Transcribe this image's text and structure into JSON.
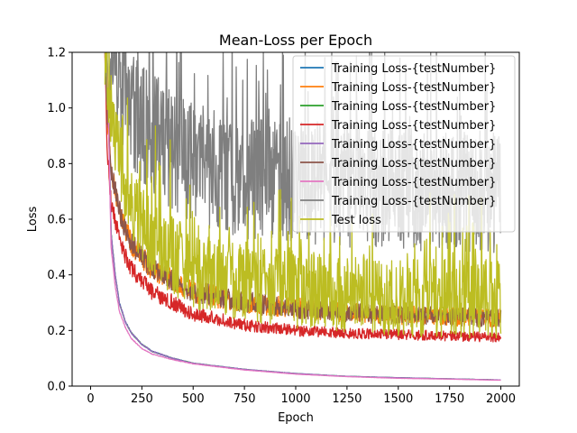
{
  "chart_data": {
    "type": "line",
    "title": "Mean-Loss per Epoch",
    "xlabel": "Epoch",
    "ylabel": "Loss",
    "xlim": [
      -90,
      2090
    ],
    "ylim": [
      0.0,
      1.2
    ],
    "x_ticks": [
      0,
      250,
      500,
      750,
      1000,
      1250,
      1500,
      1750,
      2000
    ],
    "y_ticks": [
      0.0,
      0.2,
      0.4,
      0.6,
      0.8,
      1.0,
      1.2
    ],
    "x_tick_labels": [
      "0",
      "250",
      "500",
      "750",
      "1000",
      "1250",
      "1500",
      "1750",
      "2000"
    ],
    "y_tick_labels": [
      "0.0",
      "0.2",
      "0.4",
      "0.6",
      "0.8",
      "1.0",
      "1.2"
    ],
    "grid": false,
    "legend_position": "top-right",
    "series": [
      {
        "name": "Training Loss-{testNumber}",
        "color": "#1f77b4",
        "noise": 0.004,
        "x": [
          80,
          100,
          120,
          140,
          170,
          200,
          250,
          300,
          400,
          500,
          750,
          1000,
          1250,
          1500,
          1750,
          2000
        ],
        "values": [
          1.2,
          0.55,
          0.4,
          0.3,
          0.23,
          0.19,
          0.15,
          0.125,
          0.1,
          0.082,
          0.06,
          0.045,
          0.035,
          0.03,
          0.026,
          0.022
        ]
      },
      {
        "name": "Training Loss-{testNumber}",
        "color": "#ff7f0e",
        "noise": 0.04,
        "x": [
          70,
          80,
          100,
          150,
          200,
          300,
          500,
          750,
          1000,
          1250,
          1500,
          1750,
          2000
        ],
        "values": [
          1.2,
          1.0,
          0.78,
          0.6,
          0.51,
          0.42,
          0.34,
          0.3,
          0.28,
          0.265,
          0.255,
          0.25,
          0.245
        ]
      },
      {
        "name": "Training Loss-{testNumber}",
        "color": "#2ca02c",
        "noise": 0.004,
        "x": [
          80,
          100,
          120,
          140,
          170,
          200,
          250,
          300,
          400,
          500,
          750,
          1000,
          1250,
          1500,
          1750,
          2000
        ],
        "values": [
          1.2,
          0.55,
          0.4,
          0.3,
          0.23,
          0.19,
          0.15,
          0.125,
          0.1,
          0.082,
          0.06,
          0.045,
          0.035,
          0.03,
          0.026,
          0.022
        ]
      },
      {
        "name": "Training Loss-{testNumber}",
        "color": "#d62728",
        "noise": 0.03,
        "x": [
          70,
          80,
          100,
          150,
          200,
          300,
          500,
          750,
          1000,
          1250,
          1500,
          1750,
          2000
        ],
        "values": [
          1.2,
          0.85,
          0.66,
          0.5,
          0.42,
          0.34,
          0.26,
          0.22,
          0.2,
          0.19,
          0.185,
          0.18,
          0.175
        ]
      },
      {
        "name": "Training Loss-{testNumber}",
        "color": "#9467bd",
        "noise": 0.004,
        "x": [
          80,
          100,
          120,
          140,
          170,
          200,
          250,
          300,
          400,
          500,
          750,
          1000,
          1250,
          1500,
          1750,
          2000
        ],
        "values": [
          1.2,
          0.55,
          0.4,
          0.3,
          0.23,
          0.19,
          0.15,
          0.125,
          0.1,
          0.082,
          0.06,
          0.045,
          0.035,
          0.03,
          0.026,
          0.022
        ]
      },
      {
        "name": "Training Loss-{testNumber}",
        "color": "#8c564b",
        "noise": 0.04,
        "x": [
          70,
          80,
          100,
          150,
          200,
          300,
          500,
          750,
          1000,
          1250,
          1500,
          1750,
          2000
        ],
        "values": [
          1.2,
          1.0,
          0.78,
          0.6,
          0.51,
          0.42,
          0.34,
          0.3,
          0.28,
          0.265,
          0.255,
          0.25,
          0.245
        ]
      },
      {
        "name": "Training Loss-{testNumber}",
        "color": "#e377c2",
        "noise": 0.003,
        "x": [
          80,
          100,
          120,
          140,
          170,
          200,
          250,
          300,
          400,
          500,
          750,
          1000,
          1250,
          1500,
          1750,
          2000
        ],
        "values": [
          1.2,
          0.5,
          0.36,
          0.27,
          0.21,
          0.17,
          0.135,
          0.115,
          0.095,
          0.08,
          0.058,
          0.043,
          0.034,
          0.028,
          0.025,
          0.021
        ]
      },
      {
        "name": "Training Loss-{testNumber}",
        "color": "#7f7f7f",
        "noise": 0.22,
        "x": [
          70,
          100,
          150,
          200,
          300,
          500,
          750,
          1000,
          1250,
          1500,
          1750,
          2000
        ],
        "values": [
          1.2,
          1.15,
          1.05,
          0.98,
          0.9,
          0.8,
          0.75,
          0.73,
          0.72,
          0.71,
          0.7,
          0.7
        ]
      },
      {
        "name": "Test loss",
        "color": "#bcbd22",
        "noise": 0.14,
        "x": [
          70,
          100,
          150,
          200,
          300,
          500,
          750,
          1000,
          1250,
          1500,
          1750,
          2000
        ],
        "values": [
          1.2,
          1.0,
          0.78,
          0.66,
          0.52,
          0.42,
          0.37,
          0.345,
          0.33,
          0.32,
          0.315,
          0.31
        ]
      }
    ]
  }
}
